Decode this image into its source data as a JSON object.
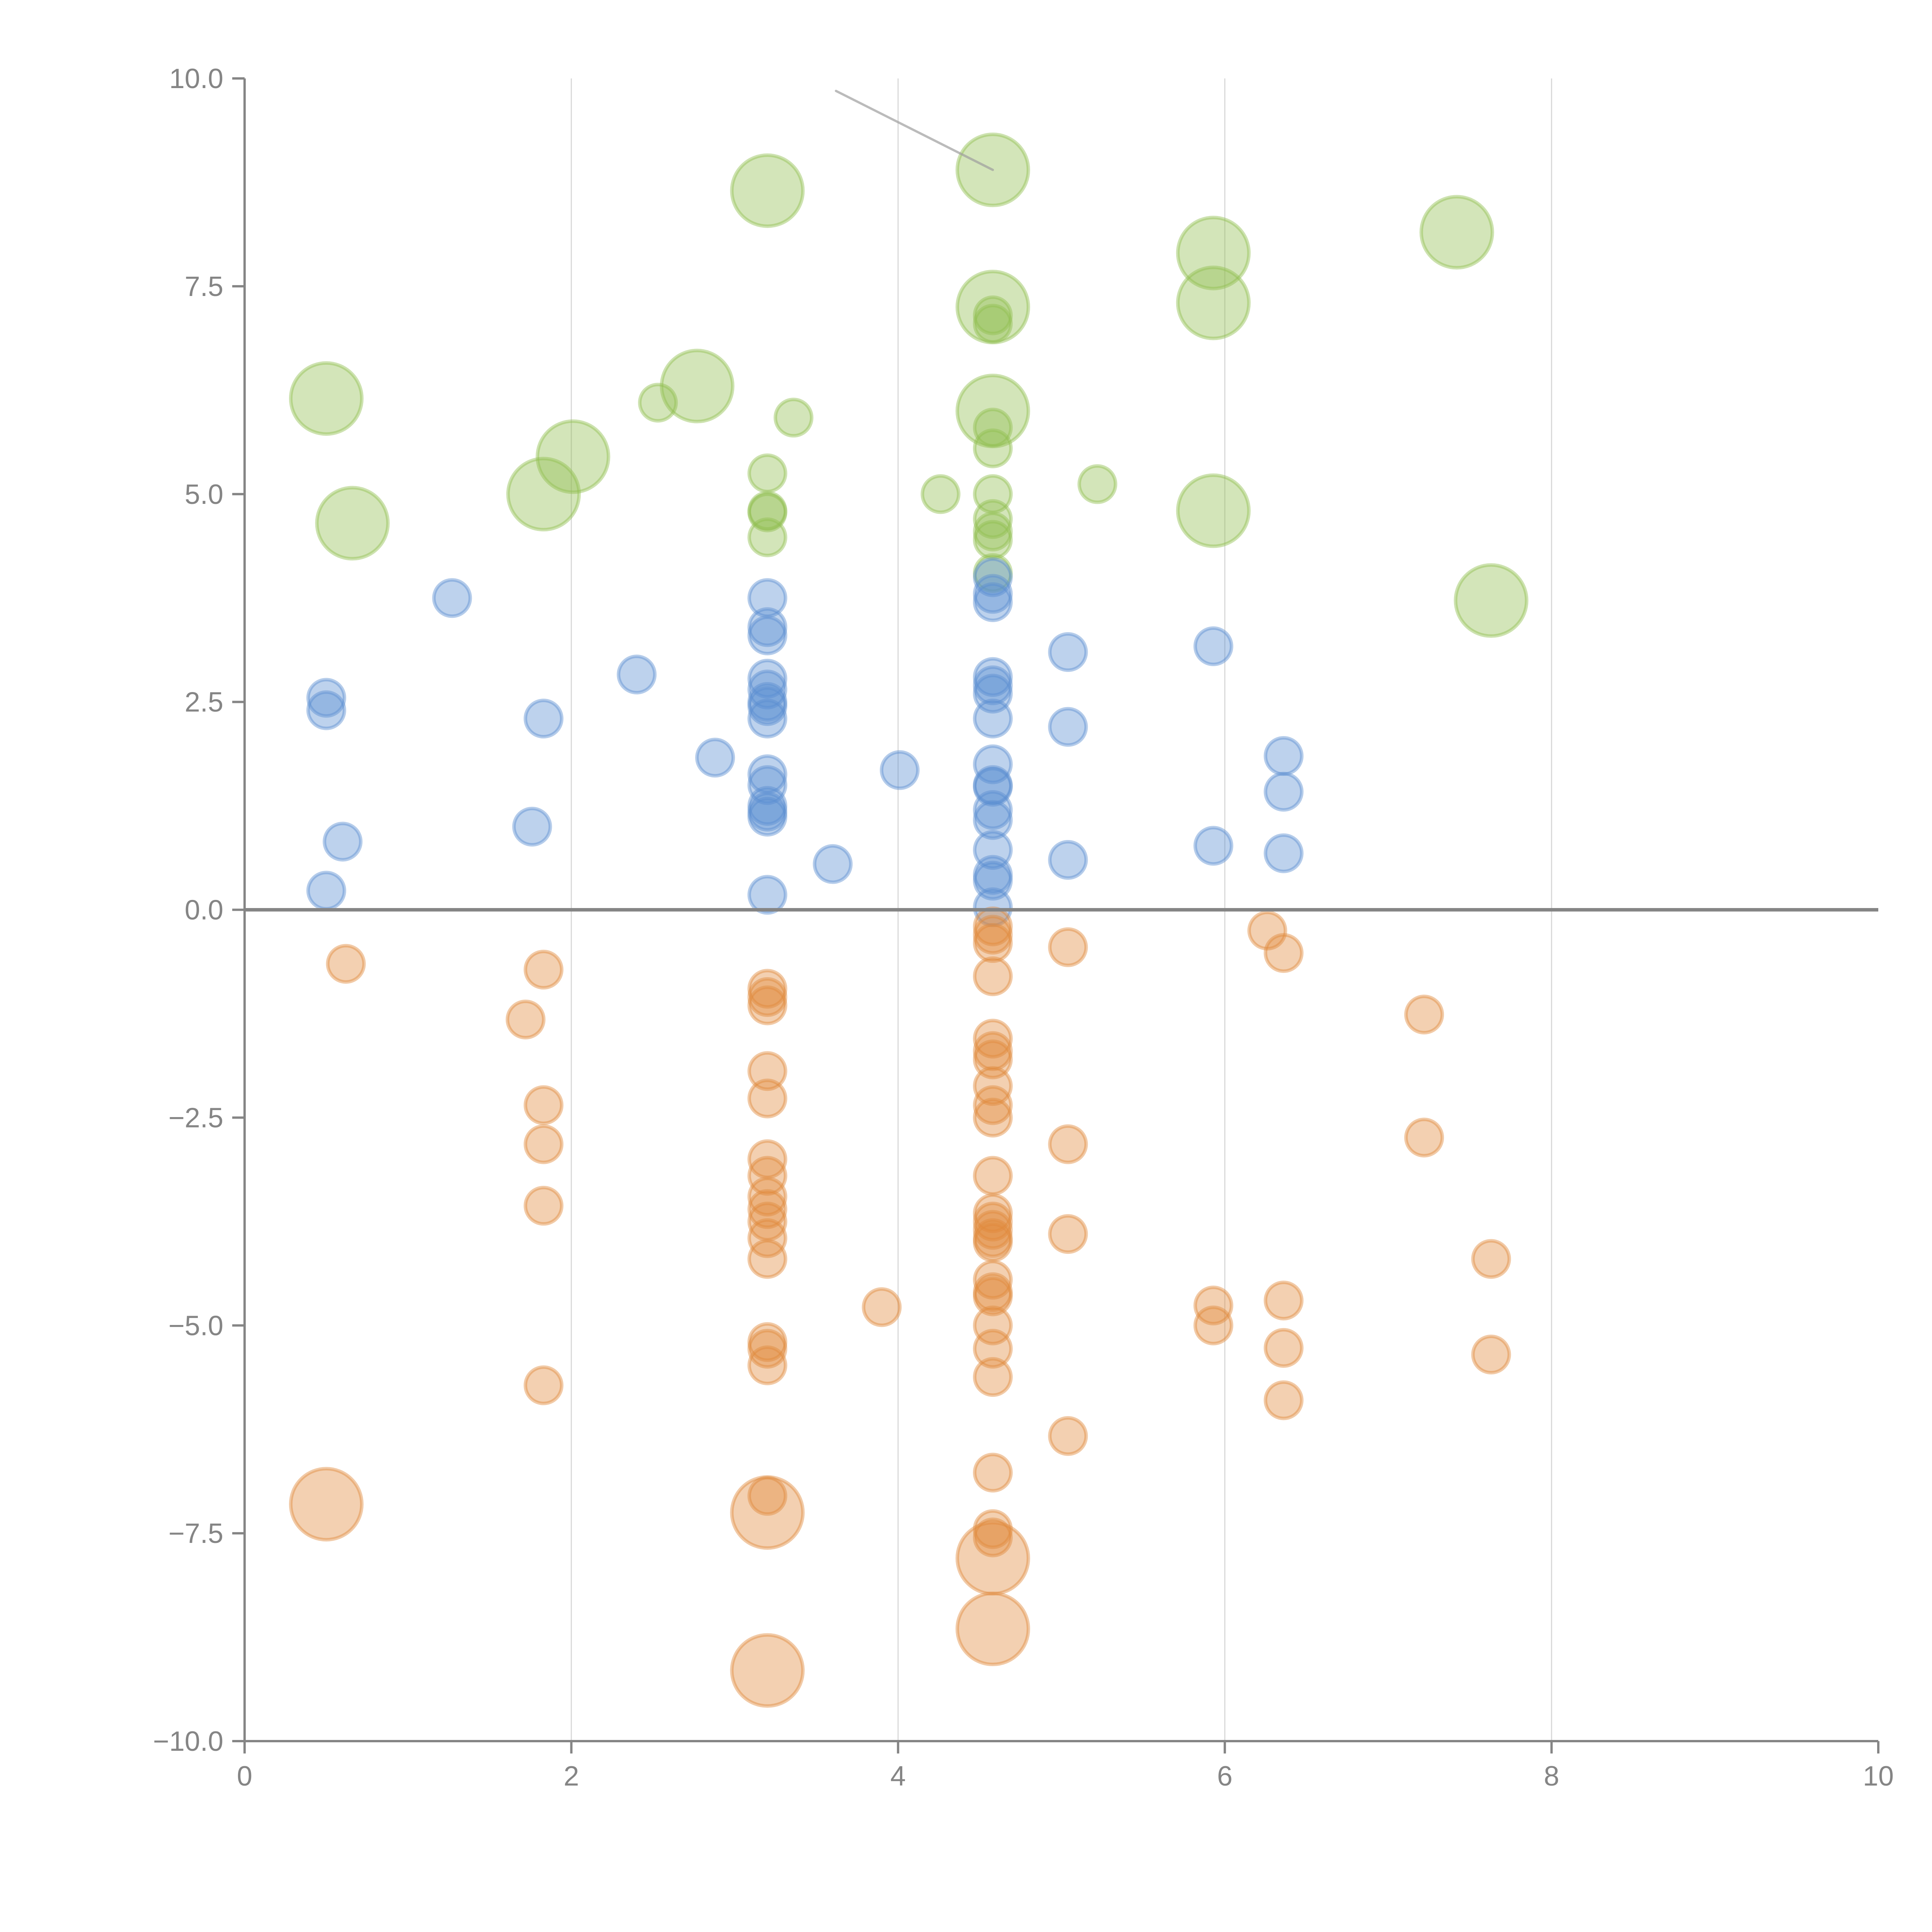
{
  "chart_data": {
    "type": "scatter",
    "title": "",
    "xlabel": "",
    "ylabel": "",
    "xlim": [
      0,
      10
    ],
    "ylim": [
      -10,
      10
    ],
    "x_ticks": [
      0,
      2,
      4,
      6,
      8,
      10
    ],
    "x_tick_labels": [
      "0",
      "2",
      "4",
      "6",
      "8",
      "10"
    ],
    "y_ticks": [
      10,
      7.5,
      5,
      2.5,
      0,
      -2.5,
      -5,
      -7.5,
      -10
    ],
    "y_tick_labels": [
      "10.0",
      "7.5",
      "5.0",
      "2.5",
      "0.0",
      "−2.5",
      "−5.0",
      "−7.5",
      "−10.0"
    ],
    "grid": "vertical",
    "zero_line": true,
    "legend": "none",
    "colors": {
      "green": "#91bf50",
      "blue": "#5b8fd1",
      "orange": "#e08a3c"
    },
    "series": [
      {
        "name": "green",
        "color": "#91bf50",
        "points": [
          {
            "x": 3.2,
            "y": 8.65,
            "size": "large"
          },
          {
            "x": 4.58,
            "y": 8.9,
            "size": "large"
          },
          {
            "x": 5.93,
            "y": 7.9,
            "size": "large"
          },
          {
            "x": 7.42,
            "y": 8.15,
            "size": "large"
          },
          {
            "x": 4.58,
            "y": 7.25,
            "size": "large"
          },
          {
            "x": 4.58,
            "y": 7.15,
            "size": "small"
          },
          {
            "x": 4.58,
            "y": 7.05,
            "size": "small"
          },
          {
            "x": 5.93,
            "y": 7.3,
            "size": "large"
          },
          {
            "x": 0.5,
            "y": 6.15,
            "size": "large"
          },
          {
            "x": 2.53,
            "y": 6.1,
            "size": "small"
          },
          {
            "x": 2.77,
            "y": 6.3,
            "size": "large"
          },
          {
            "x": 3.36,
            "y": 5.92,
            "size": "small"
          },
          {
            "x": 4.58,
            "y": 6.0,
            "size": "large"
          },
          {
            "x": 4.58,
            "y": 5.8,
            "size": "small"
          },
          {
            "x": 4.58,
            "y": 5.55,
            "size": "small"
          },
          {
            "x": 2.01,
            "y": 5.45,
            "size": "large"
          },
          {
            "x": 1.83,
            "y": 5.0,
            "size": "large"
          },
          {
            "x": 3.2,
            "y": 5.25,
            "size": "small"
          },
          {
            "x": 3.2,
            "y": 4.8,
            "size": "small"
          },
          {
            "x": 3.2,
            "y": 4.78,
            "size": "small"
          },
          {
            "x": 3.2,
            "y": 4.48,
            "size": "small"
          },
          {
            "x": 4.26,
            "y": 5.0,
            "size": "small"
          },
          {
            "x": 4.58,
            "y": 5.0,
            "size": "small"
          },
          {
            "x": 4.58,
            "y": 4.7,
            "size": "small"
          },
          {
            "x": 4.58,
            "y": 4.55,
            "size": "small"
          },
          {
            "x": 4.58,
            "y": 4.45,
            "size": "small"
          },
          {
            "x": 5.22,
            "y": 5.12,
            "size": "small"
          },
          {
            "x": 0.66,
            "y": 4.65,
            "size": "large"
          },
          {
            "x": 5.93,
            "y": 4.8,
            "size": "large"
          },
          {
            "x": 7.63,
            "y": 3.72,
            "size": "large"
          },
          {
            "x": 4.58,
            "y": 4.05,
            "size": "small"
          }
        ]
      },
      {
        "name": "blue",
        "color": "#5b8fd1",
        "points": [
          {
            "x": 1.27,
            "y": 3.75
          },
          {
            "x": 0.5,
            "y": 2.55
          },
          {
            "x": 0.5,
            "y": 2.4
          },
          {
            "x": 0.6,
            "y": 0.82
          },
          {
            "x": 0.5,
            "y": 0.23
          },
          {
            "x": 1.83,
            "y": 2.3
          },
          {
            "x": 1.76,
            "y": 1.0
          },
          {
            "x": 2.4,
            "y": 2.83
          },
          {
            "x": 2.88,
            "y": 1.83
          },
          {
            "x": 3.2,
            "y": 3.75
          },
          {
            "x": 3.2,
            "y": 3.4
          },
          {
            "x": 3.2,
            "y": 3.3
          },
          {
            "x": 3.2,
            "y": 2.78
          },
          {
            "x": 3.2,
            "y": 2.65
          },
          {
            "x": 3.2,
            "y": 2.5
          },
          {
            "x": 3.2,
            "y": 2.45
          },
          {
            "x": 3.2,
            "y": 2.3
          },
          {
            "x": 3.2,
            "y": 1.63
          },
          {
            "x": 3.2,
            "y": 1.5
          },
          {
            "x": 3.2,
            "y": 1.25
          },
          {
            "x": 3.2,
            "y": 1.18
          },
          {
            "x": 3.2,
            "y": 1.12
          },
          {
            "x": 3.2,
            "y": 0.18
          },
          {
            "x": 3.6,
            "y": 0.55
          },
          {
            "x": 4.01,
            "y": 1.68
          },
          {
            "x": 4.58,
            "y": 4.0
          },
          {
            "x": 4.58,
            "y": 3.8
          },
          {
            "x": 4.58,
            "y": 3.7
          },
          {
            "x": 4.58,
            "y": 2.8
          },
          {
            "x": 4.58,
            "y": 2.7
          },
          {
            "x": 4.58,
            "y": 2.6
          },
          {
            "x": 4.58,
            "y": 2.3
          },
          {
            "x": 4.58,
            "y": 1.75
          },
          {
            "x": 4.58,
            "y": 1.5
          },
          {
            "x": 4.58,
            "y": 1.48
          },
          {
            "x": 4.58,
            "y": 1.2
          },
          {
            "x": 4.58,
            "y": 1.08
          },
          {
            "x": 4.58,
            "y": 0.72
          },
          {
            "x": 4.58,
            "y": 0.42
          },
          {
            "x": 4.58,
            "y": 0.35
          },
          {
            "x": 4.58,
            "y": 0.03
          },
          {
            "x": 5.04,
            "y": 3.1
          },
          {
            "x": 5.04,
            "y": 2.2
          },
          {
            "x": 5.04,
            "y": 0.6
          },
          {
            "x": 5.93,
            "y": 3.17
          },
          {
            "x": 5.93,
            "y": 0.77
          },
          {
            "x": 6.36,
            "y": 1.85
          },
          {
            "x": 6.36,
            "y": 1.42
          },
          {
            "x": 6.36,
            "y": 0.68
          }
        ]
      },
      {
        "name": "orange",
        "color": "#e08a3c",
        "points": [
          {
            "x": 0.62,
            "y": -0.65,
            "size": "small"
          },
          {
            "x": 0.5,
            "y": -7.15,
            "size": "large"
          },
          {
            "x": 1.83,
            "y": -0.72,
            "size": "small"
          },
          {
            "x": 1.72,
            "y": -1.32,
            "size": "small"
          },
          {
            "x": 1.83,
            "y": -2.35,
            "size": "small"
          },
          {
            "x": 1.83,
            "y": -2.82,
            "size": "small"
          },
          {
            "x": 1.83,
            "y": -3.56,
            "size": "small"
          },
          {
            "x": 1.83,
            "y": -5.72,
            "size": "small"
          },
          {
            "x": 3.2,
            "y": -0.95,
            "size": "small"
          },
          {
            "x": 3.2,
            "y": -1.05,
            "size": "small"
          },
          {
            "x": 3.2,
            "y": -1.15,
            "size": "small"
          },
          {
            "x": 3.2,
            "y": -1.94,
            "size": "small"
          },
          {
            "x": 3.2,
            "y": -2.27,
            "size": "small"
          },
          {
            "x": 3.2,
            "y": -3.0,
            "size": "small"
          },
          {
            "x": 3.2,
            "y": -3.2,
            "size": "small"
          },
          {
            "x": 3.2,
            "y": -3.45,
            "size": "small"
          },
          {
            "x": 3.2,
            "y": -3.6,
            "size": "small"
          },
          {
            "x": 3.2,
            "y": -3.75,
            "size": "small"
          },
          {
            "x": 3.2,
            "y": -3.95,
            "size": "small"
          },
          {
            "x": 3.2,
            "y": -4.2,
            "size": "small"
          },
          {
            "x": 3.2,
            "y": -5.2,
            "size": "small"
          },
          {
            "x": 3.2,
            "y": -5.28,
            "size": "small"
          },
          {
            "x": 3.2,
            "y": -5.48,
            "size": "small"
          },
          {
            "x": 3.2,
            "y": -7.05,
            "size": "small"
          },
          {
            "x": 3.2,
            "y": -7.25,
            "size": "large"
          },
          {
            "x": 3.2,
            "y": -9.15,
            "size": "large"
          },
          {
            "x": 3.9,
            "y": -4.78,
            "size": "small"
          },
          {
            "x": 4.58,
            "y": -0.2,
            "size": "small"
          },
          {
            "x": 4.58,
            "y": -0.3,
            "size": "small"
          },
          {
            "x": 4.58,
            "y": -0.4,
            "size": "small"
          },
          {
            "x": 4.58,
            "y": -0.8,
            "size": "small"
          },
          {
            "x": 4.58,
            "y": -1.55,
            "size": "small"
          },
          {
            "x": 4.58,
            "y": -1.7,
            "size": "small"
          },
          {
            "x": 4.58,
            "y": -1.8,
            "size": "small"
          },
          {
            "x": 4.58,
            "y": -2.12,
            "size": "small"
          },
          {
            "x": 4.58,
            "y": -2.35,
            "size": "small"
          },
          {
            "x": 4.58,
            "y": -2.5,
            "size": "small"
          },
          {
            "x": 4.58,
            "y": -3.2,
            "size": "small"
          },
          {
            "x": 4.58,
            "y": -3.65,
            "size": "small"
          },
          {
            "x": 4.58,
            "y": -3.75,
            "size": "small"
          },
          {
            "x": 4.58,
            "y": -3.85,
            "size": "small"
          },
          {
            "x": 4.58,
            "y": -3.95,
            "size": "small"
          },
          {
            "x": 4.58,
            "y": -4.0,
            "size": "small"
          },
          {
            "x": 4.58,
            "y": -4.45,
            "size": "small"
          },
          {
            "x": 4.58,
            "y": -4.6,
            "size": "small"
          },
          {
            "x": 4.58,
            "y": -4.65,
            "size": "small"
          },
          {
            "x": 4.58,
            "y": -5.0,
            "size": "small"
          },
          {
            "x": 4.58,
            "y": -5.28,
            "size": "small"
          },
          {
            "x": 4.58,
            "y": -5.62,
            "size": "small"
          },
          {
            "x": 4.58,
            "y": -6.77,
            "size": "small"
          },
          {
            "x": 4.58,
            "y": -7.45,
            "size": "small"
          },
          {
            "x": 4.58,
            "y": -7.55,
            "size": "small"
          },
          {
            "x": 4.58,
            "y": -7.8,
            "size": "large"
          },
          {
            "x": 4.58,
            "y": -8.65,
            "size": "large"
          },
          {
            "x": 5.04,
            "y": -0.45,
            "size": "small"
          },
          {
            "x": 5.04,
            "y": -2.82,
            "size": "small"
          },
          {
            "x": 5.04,
            "y": -3.9,
            "size": "small"
          },
          {
            "x": 5.04,
            "y": -6.33,
            "size": "small"
          },
          {
            "x": 5.93,
            "y": -4.76,
            "size": "small"
          },
          {
            "x": 5.93,
            "y": -5.0,
            "size": "small"
          },
          {
            "x": 6.26,
            "y": -0.25,
            "size": "small"
          },
          {
            "x": 6.36,
            "y": -0.52,
            "size": "small"
          },
          {
            "x": 6.36,
            "y": -4.7,
            "size": "small"
          },
          {
            "x": 6.36,
            "y": -5.27,
            "size": "small"
          },
          {
            "x": 6.36,
            "y": -5.9,
            "size": "small"
          },
          {
            "x": 7.22,
            "y": -1.26,
            "size": "small"
          },
          {
            "x": 7.22,
            "y": -2.74,
            "size": "small"
          },
          {
            "x": 7.63,
            "y": -4.2,
            "size": "small"
          },
          {
            "x": 7.63,
            "y": -5.35,
            "size": "small"
          }
        ]
      }
    ],
    "annotations": [
      {
        "type": "leader-line",
        "from": {
          "x": 3.62,
          "y": 9.85
        },
        "to": {
          "x": 4.58,
          "y": 8.9
        }
      }
    ]
  }
}
